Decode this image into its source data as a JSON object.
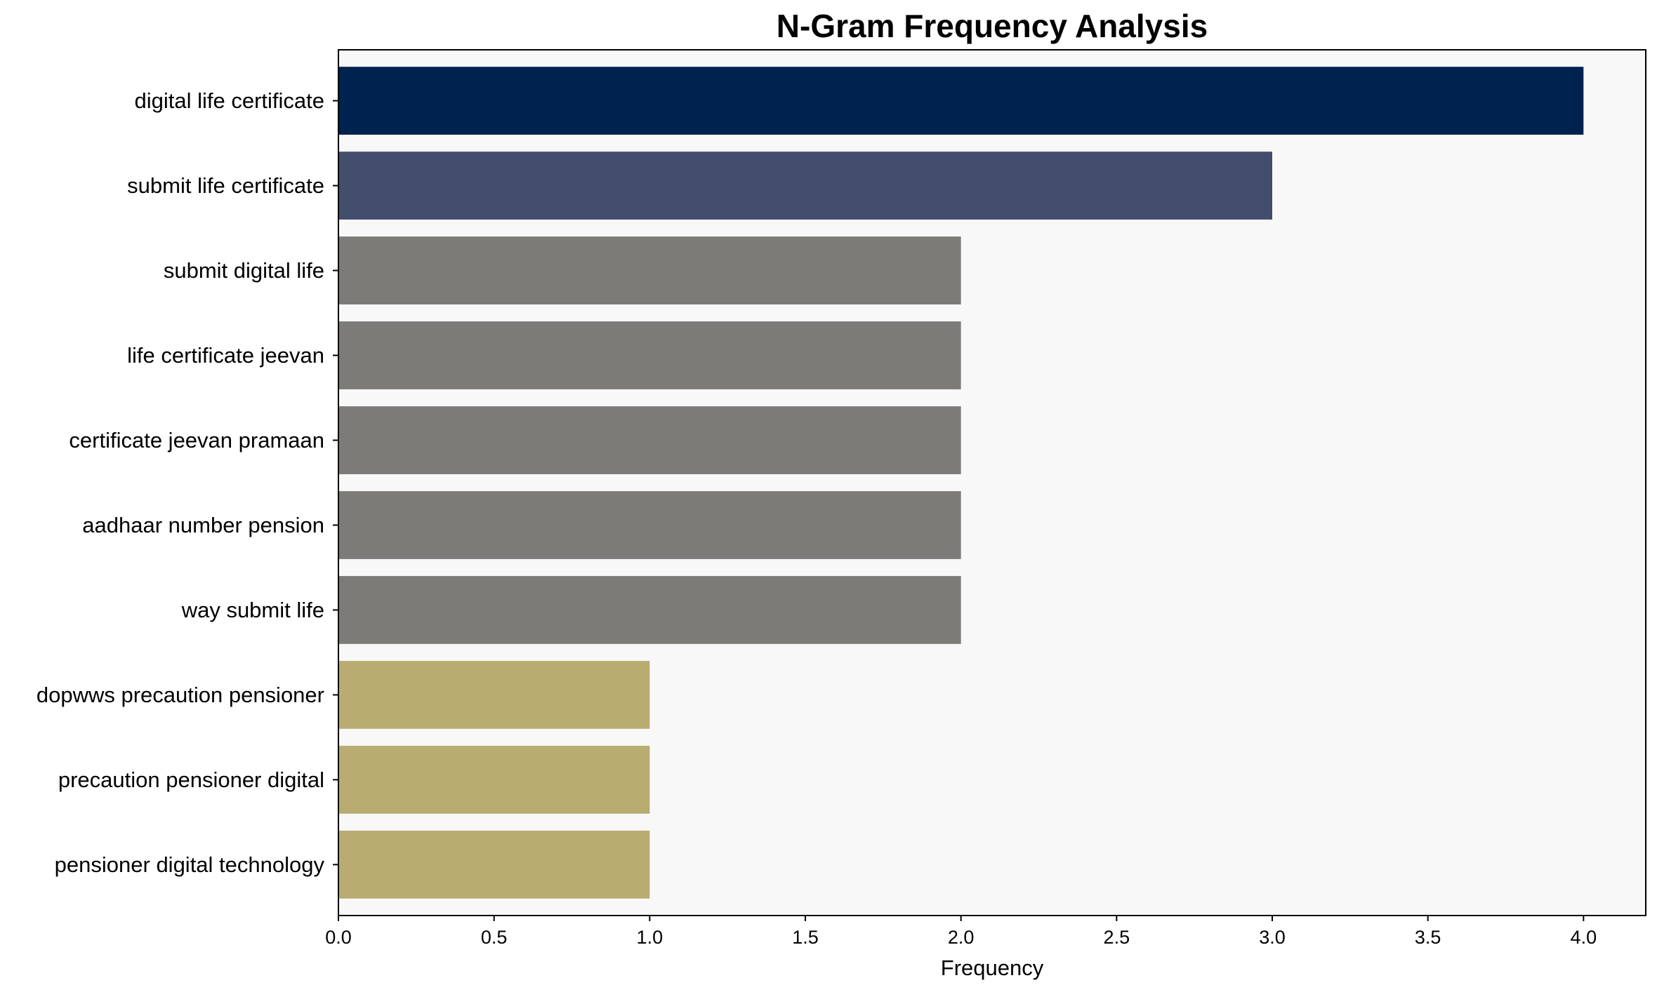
{
  "chart_data": {
    "type": "bar",
    "orientation": "horizontal",
    "title": "N-Gram Frequency Analysis",
    "xlabel": "Frequency",
    "ylabel": "",
    "xlim": [
      0,
      4.2
    ],
    "xticks": [
      "0.0",
      "0.5",
      "1.0",
      "1.5",
      "2.0",
      "2.5",
      "3.0",
      "3.5",
      "4.0"
    ],
    "grid": false,
    "legend": "none",
    "categories": [
      "digital life certificate",
      "submit life certificate",
      "submit digital life",
      "life certificate jeevan",
      "certificate jeevan pramaan",
      "aadhaar number pension",
      "way submit life",
      "dopwws precaution pensioner",
      "precaution pensioner digital",
      "pensioner digital technology"
    ],
    "values": [
      4,
      3,
      2,
      2,
      2,
      2,
      2,
      1,
      1,
      1
    ],
    "colors": [
      "#00224e",
      "#434e6c",
      "#7c7b78",
      "#7c7b78",
      "#7c7b78",
      "#7c7b78",
      "#7c7b78",
      "#b9ac70",
      "#b9ac70",
      "#b9ac70"
    ],
    "plot_background": "#f8f8f9"
  }
}
